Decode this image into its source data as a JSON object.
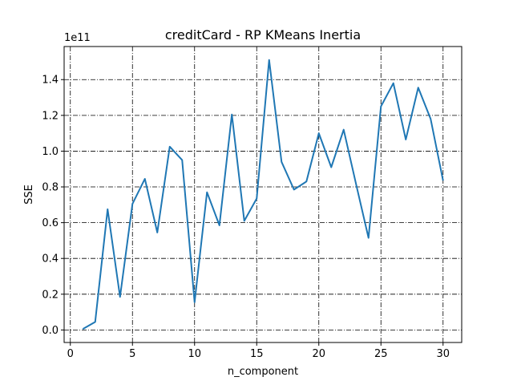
{
  "chart_data": {
    "type": "line",
    "title": "creditCard - RP KMeans Inertia",
    "xlabel": "n_component",
    "ylabel": "SSE",
    "y_offset_label": "1e11",
    "y_scale_factor": 100000000000,
    "xlim": [
      -0.5,
      31.5
    ],
    "ylim": [
      -0.07,
      1.585
    ],
    "xticks": [
      0,
      5,
      10,
      15,
      20,
      25,
      30
    ],
    "yticks": [
      0.0,
      0.2,
      0.4,
      0.6,
      0.8,
      1.0,
      1.2,
      1.4
    ],
    "ytick_labels": [
      "0.0",
      "0.2",
      "0.4",
      "0.6",
      "0.8",
      "1.0",
      "1.2",
      "1.4"
    ],
    "grid": true,
    "grid_style": "dash-dot",
    "line_color": "#1f77b4",
    "series": [
      {
        "x": [
          1,
          2,
          3,
          4,
          5,
          6,
          7,
          8,
          9,
          10,
          11,
          12,
          13,
          14,
          15,
          16,
          17,
          18,
          19,
          20,
          21,
          22,
          23,
          24,
          25,
          26,
          27,
          28,
          29,
          30
        ],
        "values": [
          0.005,
          0.045,
          0.675,
          0.185,
          0.705,
          0.845,
          0.545,
          1.025,
          0.95,
          0.155,
          0.77,
          0.585,
          1.205,
          0.61,
          0.735,
          1.51,
          0.94,
          0.785,
          0.83,
          1.1,
          0.91,
          1.12,
          0.815,
          0.515,
          1.25,
          1.38,
          1.065,
          1.355,
          1.18,
          0.835
        ]
      }
    ]
  }
}
